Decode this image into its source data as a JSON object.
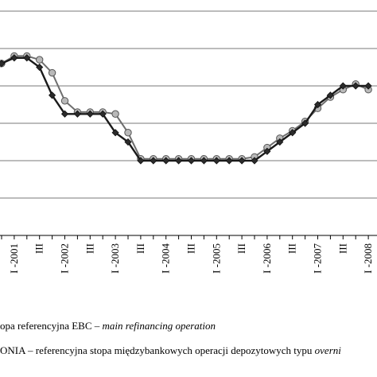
{
  "chart_data": {
    "type": "line",
    "categories": [
      "",
      "I-2001",
      "",
      "III",
      "",
      "I-2002",
      "",
      "III",
      "",
      "I-2003",
      "",
      "III",
      "",
      "I-2004",
      "",
      "III",
      "",
      "I-2005",
      "",
      "III",
      "",
      "I-2006",
      "",
      "III",
      "",
      "I-2007",
      "",
      "III",
      "",
      "I-2008"
    ],
    "tick_labels": [
      "I -2001",
      "III",
      "I -2002",
      "III",
      "I -2003",
      "III",
      "I -2004",
      "III",
      "I -2005",
      "III",
      "I -2006",
      "III",
      "I -2007",
      "III",
      "I -2008"
    ],
    "series": [
      {
        "marker": "diamond",
        "color": "#2b2b2b",
        "values": [
          4.6,
          4.75,
          4.75,
          4.5,
          3.75,
          3.25,
          3.25,
          3.25,
          3.25,
          2.75,
          2.5,
          2.0,
          2.0,
          2.0,
          2.0,
          2.0,
          2.0,
          2.0,
          2.0,
          2.0,
          2.0,
          2.25,
          2.5,
          2.75,
          3.0,
          3.5,
          3.75,
          4.0,
          4.0,
          4.0
        ]
      },
      {
        "marker": "circle",
        "color": "#b9b9b9",
        "values": [
          4.6,
          4.8,
          4.8,
          4.7,
          4.35,
          3.6,
          3.3,
          3.3,
          3.3,
          3.25,
          2.75,
          2.05,
          2.05,
          2.05,
          2.05,
          2.05,
          2.05,
          2.05,
          2.05,
          2.05,
          2.1,
          2.35,
          2.6,
          2.8,
          3.05,
          3.4,
          3.7,
          3.9,
          4.05,
          3.9
        ]
      }
    ],
    "ylim": [
      0,
      6
    ],
    "grid": true
  },
  "legend": {
    "line1_text": "opa referencyjna EBC – ",
    "line1_italic": "main refinancing operation",
    "line2_text": "ONIA  – referencyjna stopa międzybankowych operacji depozytowych typu ",
    "line2_italic": "overni"
  }
}
